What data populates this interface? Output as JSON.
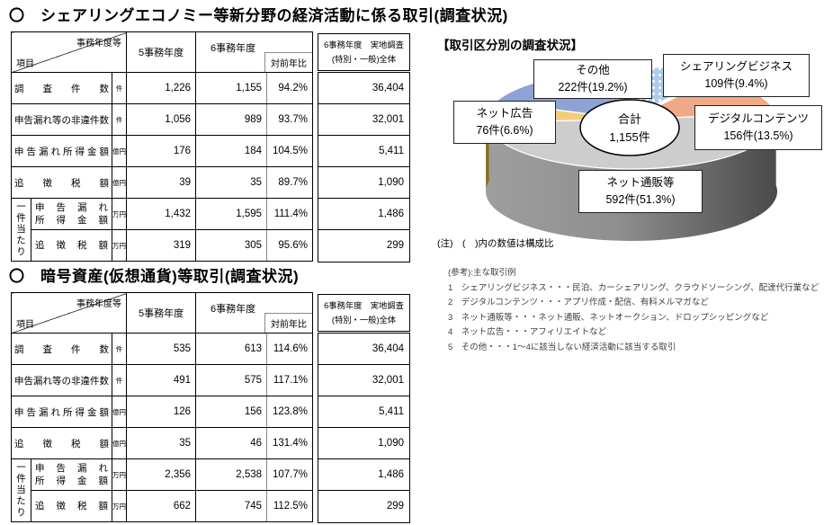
{
  "titles": {
    "section1": "〇　シェアリングエコノミー等新分野の経済活動に係る取引(調査状況)",
    "section2": "〇　暗号資産(仮想通貨)等取引(調査状況)"
  },
  "table_header": {
    "corner_top": "事務年度等",
    "corner_bottom": "項目",
    "fy5": "5事務年度",
    "fy6": "6事務年度",
    "yoy": "対前年比",
    "side_line1": "6事務年度　実地調査",
    "side_line2": "(特別・一般)全体",
    "per_case": "一件当たり"
  },
  "table1": {
    "rows": [
      {
        "label": "調査件数",
        "unit": "件",
        "fy5": "1,226",
        "fy6": "1,155",
        "yoy": "94.2%",
        "side": "36,404"
      },
      {
        "label": "申告漏れ等の非違件数",
        "unit": "件",
        "fy5": "1,056",
        "fy6": "989",
        "yoy": "93.7%",
        "side": "32,001"
      },
      {
        "label": "申告漏れ所得金額",
        "unit": "億円",
        "fy5": "176",
        "fy6": "184",
        "yoy": "104.5%",
        "side": "5,411"
      },
      {
        "label": "追徴税額",
        "unit": "億円",
        "fy5": "39",
        "fy6": "35",
        "yoy": "89.7%",
        "side": "1,090"
      },
      {
        "label1": "申告漏れ",
        "label2": "所得金額",
        "unit": "万円",
        "fy5": "1,432",
        "fy6": "1,595",
        "yoy": "111.4%",
        "side": "1,486"
      },
      {
        "label1": "追徴税額",
        "label2": "",
        "unit": "万円",
        "fy5": "319",
        "fy6": "305",
        "yoy": "95.6%",
        "side": "299"
      }
    ]
  },
  "table2": {
    "rows": [
      {
        "label": "調査件数",
        "unit": "件",
        "fy5": "535",
        "fy6": "613",
        "yoy": "114.6%",
        "side": "36,404"
      },
      {
        "label": "申告漏れ等の非違件数",
        "unit": "件",
        "fy5": "491",
        "fy6": "575",
        "yoy": "117.1%",
        "side": "32,001"
      },
      {
        "label": "申告漏れ所得金額",
        "unit": "億円",
        "fy5": "126",
        "fy6": "156",
        "yoy": "123.8%",
        "side": "5,411"
      },
      {
        "label": "追徴税額",
        "unit": "億円",
        "fy5": "35",
        "fy6": "46",
        "yoy": "131.4%",
        "side": "1,090"
      },
      {
        "label1": "申告漏れ",
        "label2": "所得金額",
        "unit": "万円",
        "fy5": "2,356",
        "fy6": "2,538",
        "yoy": "107.7%",
        "side": "1,486"
      },
      {
        "label1": "追徴税額",
        "label2": "",
        "unit": "万円",
        "fy5": "662",
        "fy6": "745",
        "yoy": "112.5%",
        "side": "299"
      }
    ]
  },
  "chart": {
    "title": "【取引区分別の調査状況】",
    "center_line1": "合計",
    "center_line2": "1,155件",
    "note": "(注)　(　)内の数値は構成比",
    "ref_title": "(参考):主な取引例",
    "ref_items": [
      "1　シェアリングビジネス・・・民泊、カーシェアリング、クラウドソーシング、配達代行業など",
      "2　デジタルコンテンツ・・・アプリ作成・配信、有料メルマガなど",
      "3　ネット通販等・・・ネット通販、ネットオークション、ドロップシッピングなど",
      "4　ネット広告・・・アフィリエイトなど",
      "5　その他・・・1〜4に該当しない経済活動に該当する取引"
    ]
  },
  "chart_data": {
    "type": "pie",
    "title": "【取引区分別の調査状況】",
    "total_label": "合計",
    "total": 1155,
    "unit": "件",
    "legend_position": "callout-boxes",
    "segments": [
      {
        "name": "シェアリングビジネス",
        "value": 109,
        "pct": 9.4,
        "label": "109件(9.4%)",
        "color": "#AECBEE",
        "wall": "#6B87B8",
        "pattern": "dots",
        "explode": true
      },
      {
        "name": "デジタルコンテンツ",
        "value": 156,
        "pct": 13.5,
        "label": "156件(13.5%)",
        "color": "#F0A987",
        "wall": "#6B4A26"
      },
      {
        "name": "ネット通販等",
        "value": 592,
        "pct": 51.3,
        "label": "592件(51.3%)",
        "color": "#CDCDCD",
        "wall": "#9E9E9E",
        "wall2": "#4A4A4A"
      },
      {
        "name": "ネット広告",
        "value": 76,
        "pct": 6.6,
        "label": "76件(6.6%)",
        "color": "#F2CD7B",
        "wall": "#8A6A1C"
      },
      {
        "name": "その他",
        "value": 222,
        "pct": 19.2,
        "label": "222件(19.2%)",
        "color": "#8FA2D6",
        "wall": "#5E6F9E"
      }
    ]
  }
}
